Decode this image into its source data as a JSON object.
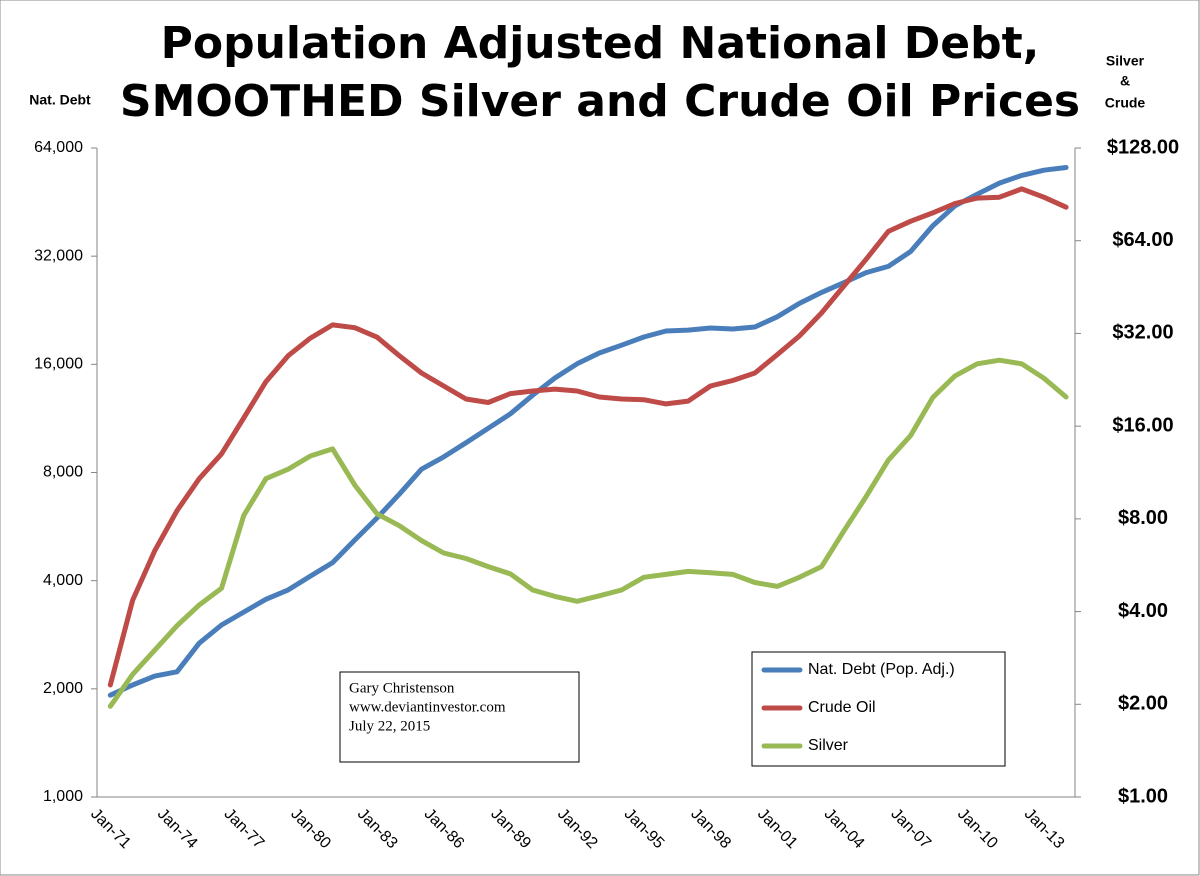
{
  "chart_data": {
    "type": "line",
    "title": [
      "Population Adjusted National Debt,",
      "SMOOTHED Silver and Crude Oil Prices"
    ],
    "y_label": "Nat. Debt",
    "y2_label": [
      "Silver",
      "&",
      "Crude"
    ],
    "annotation": [
      "Gary Christenson",
      "www.deviantinvestor.com",
      "July 22, 2015"
    ],
    "categories": [
      "Jan-71",
      null,
      null,
      "Jan-74",
      null,
      null,
      "Jan-77",
      null,
      null,
      "Jan-80",
      null,
      null,
      "Jan-83",
      null,
      null,
      "Jan-86",
      null,
      null,
      "Jan-89",
      null,
      null,
      "Jan-92",
      null,
      null,
      "Jan-95",
      null,
      null,
      "Jan-98",
      null,
      null,
      "Jan-01",
      null,
      null,
      "Jan-04",
      null,
      null,
      "Jan-07",
      null,
      null,
      "Jan-10",
      null,
      null,
      "Jan-13",
      null
    ],
    "yscale": "log",
    "ylim": [
      1000,
      64000
    ],
    "yticks": [
      {
        "value": 1000,
        "label": "1,000"
      },
      {
        "value": 2000,
        "label": "2,000"
      },
      {
        "value": 4000,
        "label": "4,000"
      },
      {
        "value": 8000,
        "label": "8,000"
      },
      {
        "value": 16000,
        "label": "16,000"
      },
      {
        "value": 32000,
        "label": "32,000"
      },
      {
        "value": 64000,
        "label": "64,000"
      }
    ],
    "y2scale": "log",
    "y2lim": [
      1,
      128
    ],
    "y2ticks": [
      {
        "value": 1,
        "label": "$1.00"
      },
      {
        "value": 2,
        "label": "$2.00"
      },
      {
        "value": 4,
        "label": "$4.00"
      },
      {
        "value": 8,
        "label": "$8.00"
      },
      {
        "value": 16,
        "label": "$16.00"
      },
      {
        "value": 32,
        "label": "$32.00"
      },
      {
        "value": 64,
        "label": "$64.00"
      },
      {
        "value": 128,
        "label": "$128.00"
      }
    ],
    "legend": "lower right",
    "series": [
      {
        "name": "Nat. Debt (Pop. Adj.)",
        "color": "#4a7ebb",
        "values": [
          1920,
          2050,
          2170,
          2230,
          2680,
          3010,
          3270,
          3550,
          3770,
          4120,
          4490,
          5190,
          5980,
          6960,
          8170,
          8840,
          9680,
          10620,
          11650,
          13130,
          14660,
          16050,
          17200,
          18090,
          19060,
          19810,
          19930,
          20190,
          20060,
          20320,
          21700,
          23650,
          25370,
          27000,
          28800,
          29960,
          32950,
          38840,
          44180,
          47600,
          51100,
          53700,
          55500,
          56500
        ]
      },
      {
        "name": "Crude Oil",
        "color": "#be4b48",
        "axis": "y2",
        "values": [
          2.31,
          4.35,
          6.31,
          8.5,
          10.8,
          13.0,
          17.0,
          22.3,
          27.1,
          30.9,
          34.1,
          33.4,
          31.1,
          27.1,
          23.8,
          21.6,
          19.6,
          19.1,
          20.4,
          20.8,
          21.1,
          20.8,
          19.9,
          19.6,
          19.5,
          18.9,
          19.3,
          21.6,
          22.5,
          23.8,
          27.3,
          31.4,
          37.3,
          45.6,
          55.7,
          68.6,
          74.0,
          78.8,
          84.5,
          88.0,
          88.6,
          94.3,
          88.6,
          82.2
        ]
      },
      {
        "name": "Silver",
        "color": "#98b954",
        "axis": "y2",
        "values": [
          1.97,
          2.5,
          3.0,
          3.6,
          4.2,
          4.76,
          8.2,
          10.8,
          11.6,
          12.8,
          13.5,
          10.3,
          8.3,
          7.6,
          6.8,
          6.2,
          5.95,
          5.6,
          5.3,
          4.7,
          4.48,
          4.32,
          4.5,
          4.7,
          5.17,
          5.28,
          5.4,
          5.35,
          5.28,
          4.97,
          4.83,
          5.17,
          5.6,
          7.3,
          9.45,
          12.4,
          14.9,
          19.8,
          23.3,
          25.5,
          26.2,
          25.5,
          22.9,
          19.9
        ]
      }
    ]
  }
}
